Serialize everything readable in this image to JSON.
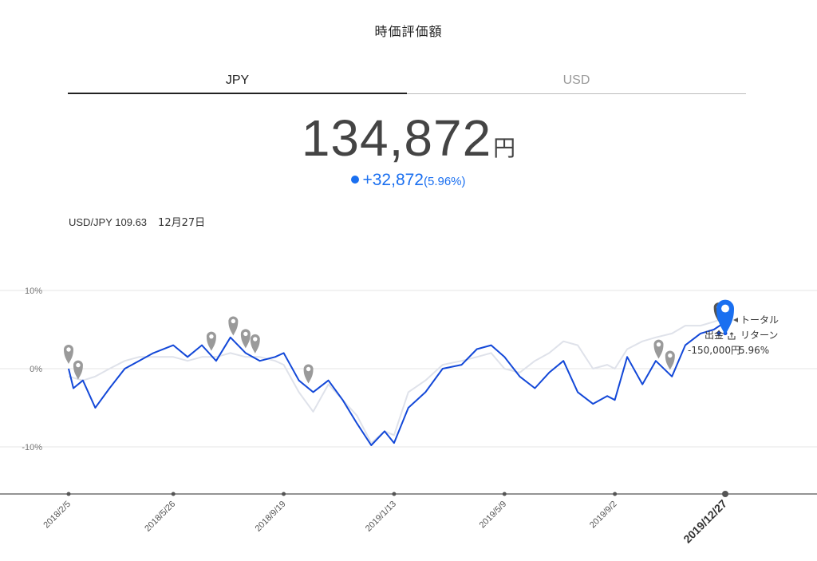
{
  "page": {
    "title": "時価評価額"
  },
  "tabs": [
    {
      "label": "JPY",
      "active": true
    },
    {
      "label": "USD",
      "active": false
    }
  ],
  "valuation": {
    "amount": "134,872",
    "unit": "円",
    "change_amount": "+32,872",
    "change_pct": "(5.96%)"
  },
  "fx": {
    "pair_text": "USD/JPY 109.63",
    "date": "12月27日"
  },
  "annotations": {
    "total_line1": "トータル",
    "total_line2": "リターン",
    "withdrawal_label": "出金",
    "withdrawal_value": "-150,000円",
    "return_value": "5.96%"
  },
  "colors": {
    "portfolio": "#1348d8",
    "benchmark": "#dfe2ea",
    "accent": "#1a6ff0",
    "marker": "#9a9a9a",
    "marker_dark": "#555555"
  },
  "chart_data": {
    "type": "line",
    "yunit": "%",
    "ylim": [
      -15,
      11
    ],
    "yticks": [
      10,
      0,
      -10
    ],
    "ytick_labels": [
      "10%",
      "0%",
      "-10%"
    ],
    "x_tick_labels": [
      "2018/2/5",
      "2018/5/26",
      "2018/9/19",
      "2019/1/13",
      "2019/5/9",
      "2019/9/2",
      "2019/12/27"
    ],
    "x_tick_dates": [
      "2018-02-05",
      "2018-05-26",
      "2018-09-19",
      "2019-01-13",
      "2019-05-09",
      "2019-09-02",
      "2019-12-27"
    ],
    "highlight_x_tick": "2019/12/27",
    "grid": true,
    "series": [
      {
        "role": "portfolio",
        "x": [
          "2018-02-05",
          "2018-02-10",
          "2018-02-20",
          "2018-03-05",
          "2018-03-20",
          "2018-04-05",
          "2018-04-20",
          "2018-05-05",
          "2018-05-26",
          "2018-06-10",
          "2018-06-25",
          "2018-07-10",
          "2018-07-25",
          "2018-08-10",
          "2018-08-25",
          "2018-09-10",
          "2018-09-19",
          "2018-10-05",
          "2018-10-20",
          "2018-11-05",
          "2018-11-20",
          "2018-12-05",
          "2018-12-20",
          "2019-01-03",
          "2019-01-13",
          "2019-01-28",
          "2019-02-15",
          "2019-03-05",
          "2019-03-25",
          "2019-04-10",
          "2019-04-25",
          "2019-05-09",
          "2019-05-25",
          "2019-06-10",
          "2019-06-25",
          "2019-07-10",
          "2019-07-25",
          "2019-08-10",
          "2019-08-25",
          "2019-09-02",
          "2019-09-15",
          "2019-10-01",
          "2019-10-15",
          "2019-11-01",
          "2019-11-15",
          "2019-12-01",
          "2019-12-15",
          "2019-12-27"
        ],
        "y": [
          0,
          -2.5,
          -1.5,
          -5,
          -2.5,
          0,
          1,
          2,
          3,
          1.5,
          3,
          1,
          4,
          2,
          1,
          1.5,
          2,
          -1.5,
          -3,
          -1.5,
          -4,
          -7,
          -9.8,
          -8,
          -9.5,
          -5,
          -3,
          0,
          0.5,
          2.5,
          3,
          1.5,
          -1,
          -2.5,
          -0.5,
          1,
          -3,
          -4.5,
          -3.5,
          -4,
          1.5,
          -2,
          1,
          -1,
          3,
          4.5,
          5,
          5.96
        ]
      },
      {
        "role": "benchmark",
        "x": [
          "2018-02-05",
          "2018-02-20",
          "2018-03-05",
          "2018-03-20",
          "2018-04-05",
          "2018-04-20",
          "2018-05-05",
          "2018-05-26",
          "2018-06-10",
          "2018-06-25",
          "2018-07-10",
          "2018-07-25",
          "2018-08-10",
          "2018-08-25",
          "2018-09-10",
          "2018-09-19",
          "2018-10-05",
          "2018-10-20",
          "2018-11-05",
          "2018-11-20",
          "2018-12-05",
          "2018-12-20",
          "2019-01-03",
          "2019-01-13",
          "2019-01-28",
          "2019-02-15",
          "2019-03-05",
          "2019-03-25",
          "2019-04-10",
          "2019-04-25",
          "2019-05-09",
          "2019-05-25",
          "2019-06-10",
          "2019-06-25",
          "2019-07-10",
          "2019-07-25",
          "2019-08-10",
          "2019-08-25",
          "2019-09-02",
          "2019-09-15",
          "2019-10-01",
          "2019-10-15",
          "2019-11-01",
          "2019-11-15",
          "2019-12-01",
          "2019-12-15",
          "2019-12-27"
        ],
        "y": [
          -1,
          -1.5,
          -1,
          0,
          1,
          1.5,
          1.5,
          1.5,
          1,
          1.5,
          1.5,
          2,
          1.5,
          1.5,
          1,
          0.5,
          -3,
          -5.5,
          -2,
          -4,
          -6,
          -9.5,
          -8,
          -8.5,
          -3,
          -1.5,
          0.5,
          1,
          1.5,
          2,
          0,
          -0.5,
          1,
          2,
          3.5,
          3,
          0,
          0.5,
          0,
          2.5,
          3.5,
          4,
          4.5,
          5.5,
          5.5,
          6,
          6.5
        ]
      }
    ],
    "event_marker_dates": [
      "2018-02-05",
      "2018-02-15",
      "2018-07-05",
      "2018-07-28",
      "2018-08-10",
      "2018-08-20",
      "2018-10-15",
      "2019-10-18",
      "2019-10-30",
      "2019-12-20"
    ],
    "current_marker_date": "2019-12-27"
  }
}
